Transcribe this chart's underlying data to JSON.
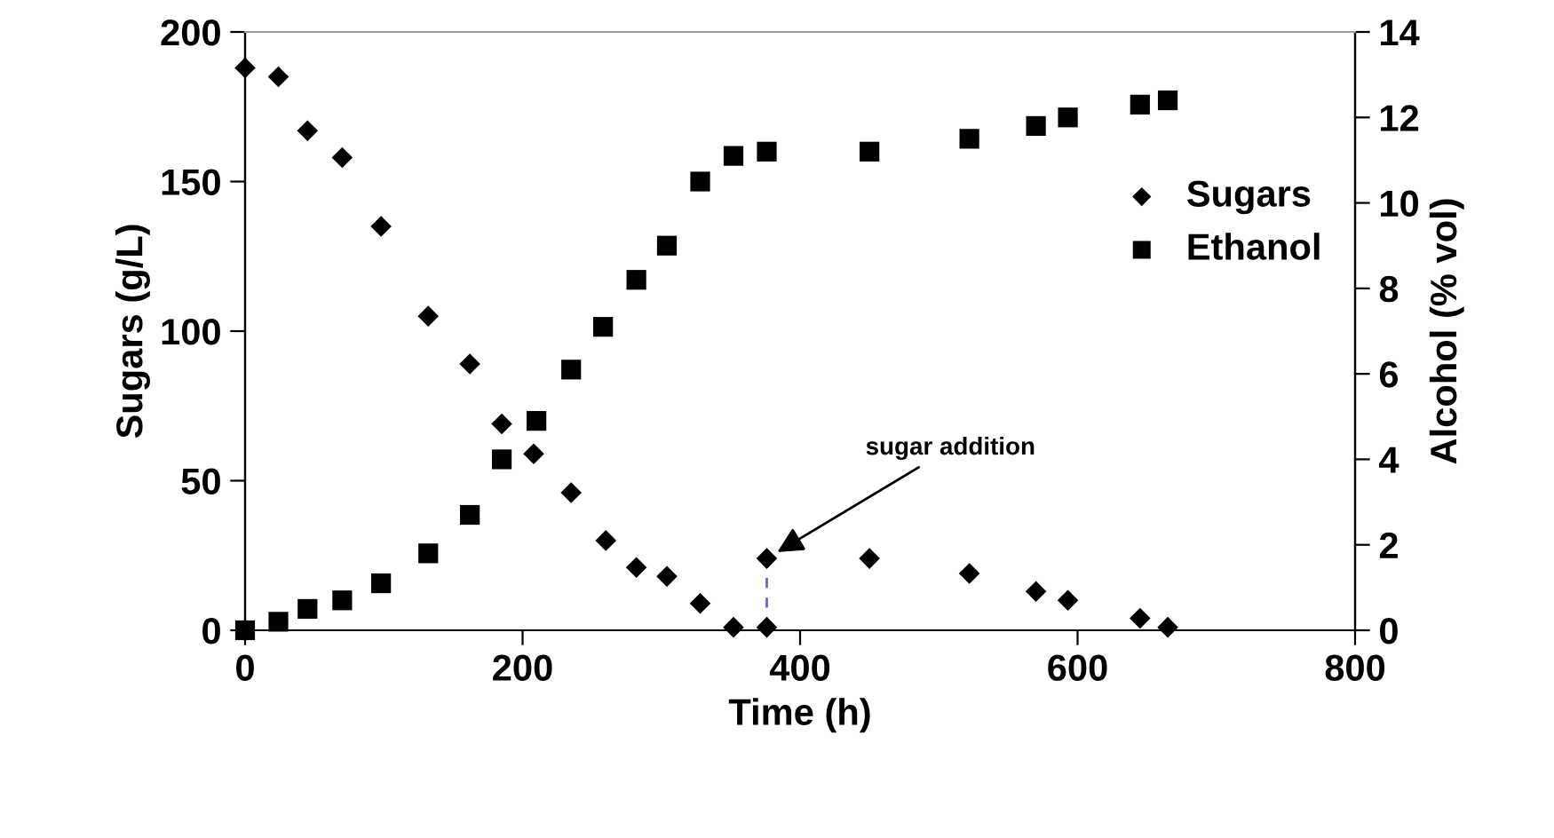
{
  "chart_data": {
    "type": "scatter",
    "xlabel": "Time (h)",
    "ylabel": "Sugars (g/L)",
    "y2label": "Alcohol (% vol)",
    "xlim": [
      0,
      800
    ],
    "xticks": [
      0,
      200,
      400,
      600,
      800
    ],
    "ylim": [
      0,
      200
    ],
    "yticks": [
      0,
      50,
      100,
      150,
      200
    ],
    "y2lim": [
      0,
      14
    ],
    "y2ticks": [
      0,
      2,
      4,
      6,
      8,
      10,
      12,
      14
    ],
    "grid": false,
    "legend": "right",
    "annotations": [
      {
        "text": "sugar addition",
        "x": 376,
        "y": 24
      }
    ],
    "series": [
      {
        "name": "Sugars",
        "color": "#000000",
        "marker": "diamond",
        "x": [
          0,
          24,
          45,
          70,
          98,
          132,
          162,
          185,
          208,
          235,
          260,
          282,
          304,
          328,
          352,
          376,
          376,
          450,
          522,
          570,
          593,
          645,
          665
        ],
        "values": [
          188,
          185,
          167,
          158,
          135,
          105,
          89,
          69,
          59,
          46,
          30,
          21,
          18,
          9,
          1,
          1,
          24,
          24,
          19,
          13,
          10,
          4,
          1
        ]
      },
      {
        "name": "Ethanol",
        "color": "#000000",
        "marker": "square",
        "axis": "y2",
        "x": [
          0,
          24,
          45,
          70,
          98,
          132,
          162,
          185,
          210,
          235,
          258,
          282,
          304,
          328,
          352,
          376,
          450,
          522,
          570,
          593,
          645,
          665
        ],
        "values": [
          0,
          0.2,
          0.5,
          0.7,
          1.1,
          1.8,
          2.7,
          4.0,
          4.9,
          6.1,
          7.1,
          8.2,
          9.0,
          10.5,
          11.1,
          11.2,
          11.2,
          11.5,
          11.8,
          12.0,
          12.3,
          12.4
        ]
      },
      {
        "type": "line",
        "color": "#6666cc",
        "line_style": "dashed",
        "marker": "none",
        "x": [
          376,
          376
        ],
        "values": [
          1,
          24
        ]
      }
    ]
  }
}
